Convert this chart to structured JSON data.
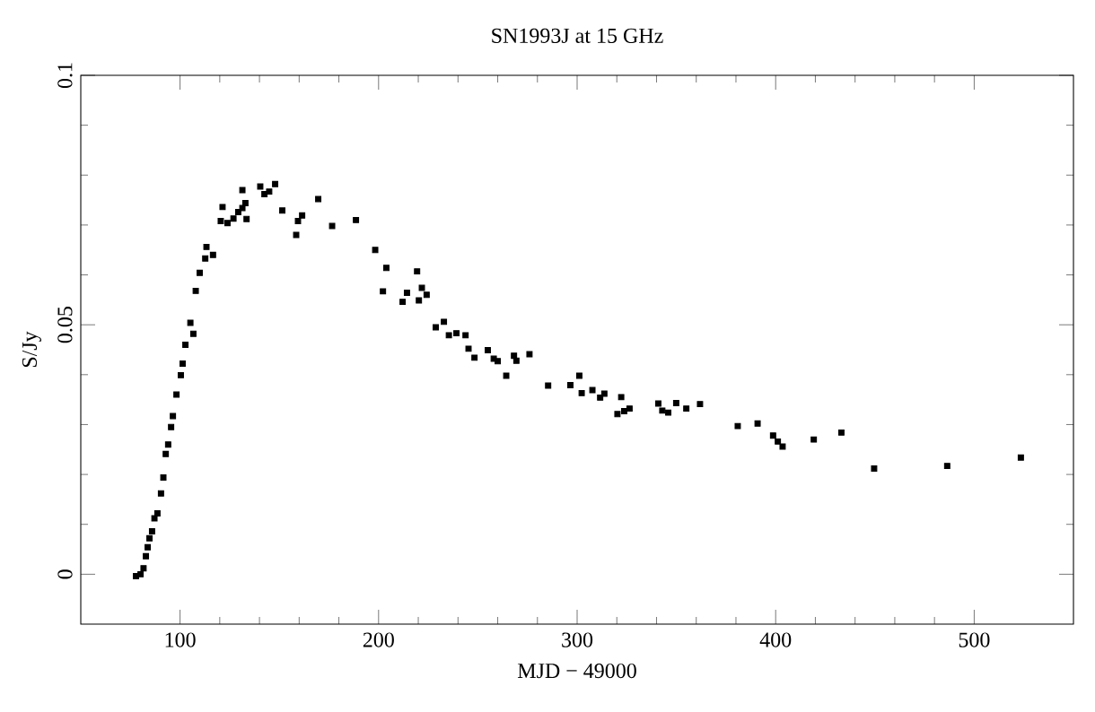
{
  "chart_data": {
    "type": "scatter",
    "title": "SN1993J at 15 GHz",
    "xlabel": "MJD − 49000",
    "ylabel": "S/Jy",
    "x": [
      77.8,
      80.1,
      81.6,
      82.8,
      83.7,
      84.6,
      85.9,
      87.1,
      88.6,
      90.4,
      91.6,
      92.8,
      94.0,
      95.5,
      96.4,
      98.2,
      100.4,
      101.3,
      102.7,
      105.2,
      106.7,
      107.9,
      109.9,
      112.7,
      113.3,
      116.6,
      120.5,
      121.4,
      123.9,
      126.9,
      129.3,
      131.4,
      132.9,
      133.5,
      131.4,
      140.4,
      142.5,
      144.9,
      147.9,
      151.5,
      158.5,
      159.4,
      161.5,
      169.6,
      176.6,
      188.6,
      198.3,
      203.9,
      202.2,
      214.3,
      212.1,
      219.4,
      221.8,
      224.2,
      220.3,
      228.8,
      232.9,
      235.4,
      239.2,
      243.8,
      245.3,
      248.3,
      255.0,
      258.0,
      260.0,
      264.3,
      268.2,
      269.4,
      276.0,
      285.4,
      296.6,
      301.1,
      302.3,
      307.7,
      311.6,
      313.7,
      322.2,
      320.3,
      323.7,
      326.4,
      340.9,
      342.9,
      345.9,
      349.9,
      355.0,
      361.9,
      380.9,
      390.9,
      398.7,
      401.1,
      403.5,
      419.2,
      433.1,
      449.6,
      486.4,
      523.5
    ],
    "values": [
      -0.0004,
      0.0,
      0.0012,
      0.0036,
      0.0054,
      0.0072,
      0.0086,
      0.0112,
      0.0122,
      0.0162,
      0.0194,
      0.0241,
      0.026,
      0.0295,
      0.0317,
      0.036,
      0.0399,
      0.0422,
      0.046,
      0.0504,
      0.0482,
      0.0568,
      0.0604,
      0.0633,
      0.0656,
      0.064,
      0.0708,
      0.0736,
      0.0704,
      0.0713,
      0.0726,
      0.0734,
      0.0744,
      0.0712,
      0.077,
      0.0777,
      0.0762,
      0.0767,
      0.0782,
      0.0729,
      0.068,
      0.0708,
      0.0719,
      0.0752,
      0.0698,
      0.071,
      0.065,
      0.0614,
      0.0567,
      0.0564,
      0.0546,
      0.0607,
      0.0574,
      0.056,
      0.0549,
      0.0495,
      0.0506,
      0.0479,
      0.0483,
      0.0479,
      0.0452,
      0.0434,
      0.0449,
      0.0432,
      0.0427,
      0.0398,
      0.0438,
      0.0428,
      0.0441,
      0.0378,
      0.0379,
      0.0398,
      0.0363,
      0.0369,
      0.0354,
      0.0362,
      0.0355,
      0.0321,
      0.0327,
      0.0332,
      0.0342,
      0.0328,
      0.0324,
      0.0343,
      0.0332,
      0.0341,
      0.0297,
      0.0302,
      0.0278,
      0.0266,
      0.0256,
      0.027,
      0.0284,
      0.0212,
      0.0217,
      0.0234
    ],
    "color": "#000000",
    "marker": "square",
    "xlim": [
      50,
      550
    ],
    "ylim": [
      -0.01,
      0.1
    ],
    "xticks": [
      100,
      200,
      300,
      400,
      500
    ],
    "yticks": [
      0,
      0.05,
      0.1
    ]
  }
}
